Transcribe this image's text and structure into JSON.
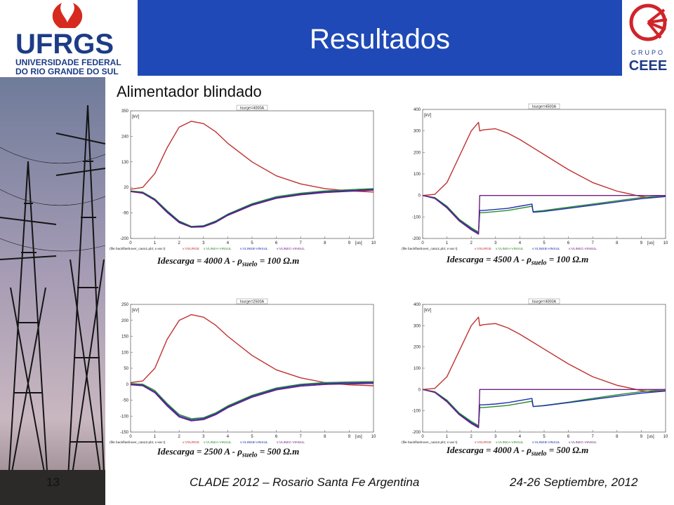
{
  "header": {
    "title": "Resultados",
    "left_logo": {
      "line1": "UFRGS",
      "line2": "UNIVERSIDADE FEDERAL",
      "line3": "DO RIO GRANDE DO SUL"
    },
    "right_logo": {
      "line1": "GRUPO",
      "line2": "CEEE"
    }
  },
  "subtitle": "Alimentador blindado",
  "colors": {
    "header": "#1f49b6",
    "red": "#c03030",
    "green": "#2a8a2a",
    "blue": "#2030b0",
    "purple": "#702080"
  },
  "captions": [
    {
      "current": "Idescarga = 4000 A - ",
      "rho": "ρ",
      "sub": "suelo",
      "rest": " = 100 Ω.m"
    },
    {
      "current": "Idescarga = 4500 A - ",
      "rho": "ρ",
      "sub": "suelo",
      "rest": " = 100 Ω.m"
    },
    {
      "current": "Idescarga = 2500 A - ",
      "rho": "ρ",
      "sub": "suelo",
      "rest": " = 500 Ω.m"
    },
    {
      "current": "Idescarga = 4000 A - ",
      "rho": "ρ",
      "sub": "suelo",
      "rest": " = 500 Ω.m"
    }
  ],
  "footer": {
    "slide_number": "13",
    "conference": "CLADE 2012 – Rosario Santa Fe Argentina",
    "date": "24-26 Septiembre, 2012"
  },
  "chart_data": [
    {
      "type": "line",
      "title": "Isurge=4000A",
      "ylabel": "[kV]",
      "xlabel": "[us]",
      "ylim": [
        -200,
        350
      ],
      "xlim": [
        0,
        10
      ],
      "yticks": [
        350,
        240,
        130,
        20,
        -90,
        -200
      ],
      "xticks": [
        0,
        1,
        2,
        3,
        4,
        5,
        6,
        7,
        8,
        9,
        10
      ],
      "legend": [
        "(file backflashover_caso1.pl4; x-var t)",
        "v:VSURGE",
        "v:VLINEA-VINSUL",
        "v:VLINEB-VINSUL",
        "v:VLINEC-VINSUL"
      ],
      "series": [
        {
          "name": "v:VSURGE",
          "x": [
            0,
            0.5,
            1,
            1.5,
            2,
            2.5,
            3,
            3.5,
            4,
            5,
            6,
            7,
            8,
            9,
            10
          ],
          "values": [
            12,
            20,
            80,
            190,
            280,
            305,
            295,
            260,
            210,
            130,
            70,
            35,
            15,
            5,
            0
          ]
        },
        {
          "name": "v:VLINEA-VINSUL",
          "x": [
            0,
            0.5,
            1,
            1.5,
            2,
            2.5,
            3,
            3.5,
            4,
            5,
            6,
            7,
            8,
            9,
            10
          ],
          "values": [
            5,
            0,
            -30,
            -80,
            -125,
            -148,
            -145,
            -125,
            -95,
            -50,
            -20,
            -5,
            5,
            10,
            15
          ]
        },
        {
          "name": "v:VLINEB-VINSUL",
          "x": [
            0,
            0.5,
            1,
            1.5,
            2,
            2.5,
            3,
            3.5,
            4,
            5,
            6,
            7,
            8,
            9,
            10
          ],
          "values": [
            3,
            -3,
            -33,
            -84,
            -128,
            -150,
            -147,
            -128,
            -98,
            -54,
            -24,
            -9,
            1,
            6,
            11
          ]
        },
        {
          "name": "v:VLINEC-VINSUL",
          "x": [
            0,
            0.5,
            1,
            1.5,
            2,
            2.5,
            3,
            3.5,
            4,
            5,
            6,
            7,
            8,
            9,
            10
          ],
          "values": [
            2,
            -5,
            -36,
            -88,
            -132,
            -152,
            -150,
            -131,
            -101,
            -57,
            -27,
            -12,
            -2,
            3,
            8
          ]
        }
      ]
    },
    {
      "type": "line",
      "title": "Isurge=4500A",
      "ylabel": "[kV]",
      "xlabel": "[us]",
      "ylim": [
        -200,
        400
      ],
      "xlim": [
        0,
        10
      ],
      "yticks": [
        400,
        300,
        200,
        100,
        0,
        -100,
        -200
      ],
      "xticks": [
        0,
        1,
        2,
        3,
        4,
        5,
        6,
        7,
        8,
        9,
        10
      ],
      "legend": [
        "(file backflashover_caso1.pl4; x-var t)",
        "v:VSURGE",
        "v:VLINEA-VINSUL",
        "v:VLINEB-VINSUL",
        "v:VLINEC-VINSUL"
      ],
      "series": [
        {
          "name": "v:VSURGE",
          "x": [
            0,
            0.5,
            1,
            1.5,
            2,
            2.3,
            2.35,
            2.5,
            3,
            3.5,
            4,
            5,
            6,
            7,
            8,
            9,
            9.5,
            10
          ],
          "values": [
            0,
            5,
            60,
            180,
            300,
            340,
            300,
            305,
            310,
            290,
            260,
            190,
            120,
            60,
            20,
            -5,
            -10,
            -5
          ]
        },
        {
          "name": "v:VLINEA-VINSUL",
          "x": [
            0,
            0.5,
            1,
            1.5,
            2,
            2.3,
            2.35,
            2.5,
            3,
            3.5,
            4,
            4.5,
            4.55,
            5,
            6,
            7,
            8,
            9,
            10
          ],
          "values": [
            0,
            -10,
            -50,
            -110,
            -150,
            -170,
            -80,
            -80,
            -75,
            -70,
            -60,
            -50,
            -75,
            -70,
            -55,
            -40,
            -25,
            -10,
            0
          ]
        },
        {
          "name": "v:VLINEB-VINSUL",
          "x": [
            0,
            0.5,
            1,
            1.5,
            2,
            2.3,
            2.35,
            2.5,
            3,
            3.5,
            4,
            4.5,
            4.55,
            5,
            6,
            7,
            8,
            9,
            10
          ],
          "values": [
            0,
            -12,
            -55,
            -115,
            -155,
            -175,
            -70,
            -70,
            -65,
            -60,
            -50,
            -40,
            -78,
            -74,
            -60,
            -45,
            -30,
            -15,
            -5
          ]
        },
        {
          "name": "v:VLINEC-VINSUL",
          "x": [
            0,
            0.5,
            1,
            1.5,
            2,
            2.3,
            2.35,
            10
          ],
          "values": [
            0,
            -14,
            -58,
            -118,
            -160,
            -180,
            0,
            0
          ]
        }
      ]
    },
    {
      "type": "line",
      "title": "Isurge=2500A",
      "ylabel": "[kV]",
      "xlabel": "[us]",
      "ylim": [
        -150,
        250
      ],
      "xlim": [
        0,
        10
      ],
      "yticks": [
        250,
        200,
        150,
        100,
        50,
        0,
        -50,
        -100,
        -150
      ],
      "xticks": [
        0,
        1,
        2,
        3,
        4,
        5,
        6,
        7,
        8,
        9,
        10
      ],
      "legend": [
        "(file backflashover_caso2.pl4; x-var t)",
        "v:VSURGE",
        "v:VLINEA-VINSUL",
        "v:VLINEB-VINSUL",
        "v:VLINEC-VINSUL"
      ],
      "series": [
        {
          "name": "v:VSURGE",
          "x": [
            0,
            0.5,
            1,
            1.5,
            2,
            2.5,
            3,
            3.5,
            4,
            5,
            6,
            7,
            8,
            9,
            10
          ],
          "values": [
            5,
            10,
            50,
            140,
            200,
            218,
            210,
            185,
            150,
            90,
            45,
            20,
            5,
            -2,
            -5
          ]
        },
        {
          "name": "v:VLINEA-VINSUL",
          "x": [
            0,
            0.5,
            1,
            1.5,
            2,
            2.5,
            3,
            3.5,
            4,
            5,
            6,
            7,
            8,
            9,
            10
          ],
          "values": [
            2,
            0,
            -20,
            -60,
            -95,
            -108,
            -105,
            -90,
            -68,
            -35,
            -12,
            0,
            5,
            7,
            8
          ]
        },
        {
          "name": "v:VLINEB-VINSUL",
          "x": [
            0,
            0.5,
            1,
            1.5,
            2,
            2.5,
            3,
            3.5,
            4,
            5,
            6,
            7,
            8,
            9,
            10
          ],
          "values": [
            0,
            -3,
            -24,
            -64,
            -99,
            -112,
            -108,
            -93,
            -71,
            -38,
            -15,
            -3,
            2,
            4,
            5
          ]
        },
        {
          "name": "v:VLINEC-VINSUL",
          "x": [
            0,
            0.5,
            1,
            1.5,
            2,
            2.5,
            3,
            3.5,
            4,
            5,
            6,
            7,
            8,
            9,
            10
          ],
          "values": [
            -2,
            -5,
            -27,
            -68,
            -103,
            -115,
            -111,
            -96,
            -74,
            -41,
            -18,
            -6,
            -1,
            1,
            2
          ]
        }
      ]
    },
    {
      "type": "line",
      "title": "Isurge=4000A",
      "ylabel": "[kV]",
      "xlabel": "[us]",
      "ylim": [
        -200,
        400
      ],
      "xlim": [
        0,
        10
      ],
      "yticks": [
        400,
        300,
        200,
        100,
        0,
        -100,
        -200
      ],
      "xticks": [
        0,
        1,
        2,
        3,
        4,
        5,
        6,
        7,
        8,
        9,
        10
      ],
      "legend": [
        "(file backflashover_caso2.pl4; x-var t)",
        "v:VSURGE",
        "v:VLINEA-VINSUL",
        "v:VLINEB-VINSUL",
        "v:VLINEC-VINSUL"
      ],
      "series": [
        {
          "name": "v:VSURGE",
          "x": [
            0,
            0.5,
            1,
            1.5,
            2,
            2.3,
            2.35,
            2.5,
            3,
            3.5,
            4,
            5,
            6,
            7,
            8,
            9,
            9.5,
            10
          ],
          "values": [
            0,
            5,
            60,
            180,
            300,
            340,
            300,
            305,
            310,
            290,
            260,
            190,
            120,
            60,
            20,
            -5,
            -10,
            -5
          ]
        },
        {
          "name": "v:VLINEA-VINSUL",
          "x": [
            0,
            0.5,
            1,
            1.5,
            2,
            2.3,
            2.35,
            2.5,
            3,
            3.5,
            4,
            4.5,
            4.55,
            5,
            6,
            7,
            8,
            9,
            10
          ],
          "values": [
            0,
            -10,
            -50,
            -110,
            -150,
            -170,
            -85,
            -85,
            -80,
            -75,
            -65,
            -55,
            -80,
            -75,
            -60,
            -42,
            -25,
            -10,
            0
          ]
        },
        {
          "name": "v:VLINEB-VINSUL",
          "x": [
            0,
            0.5,
            1,
            1.5,
            2,
            2.3,
            2.35,
            2.5,
            3,
            3.5,
            4,
            4.5,
            4.55,
            5,
            6,
            7,
            8,
            9,
            10
          ],
          "values": [
            0,
            -12,
            -55,
            -115,
            -155,
            -175,
            -72,
            -72,
            -68,
            -62,
            -52,
            -42,
            -80,
            -76,
            -62,
            -47,
            -32,
            -17,
            -7
          ]
        },
        {
          "name": "v:VLINEC-VINSUL",
          "x": [
            0,
            0.5,
            1,
            1.5,
            2,
            2.3,
            2.35,
            10
          ],
          "values": [
            0,
            -14,
            -58,
            -118,
            -160,
            -180,
            0,
            0
          ]
        }
      ]
    }
  ]
}
